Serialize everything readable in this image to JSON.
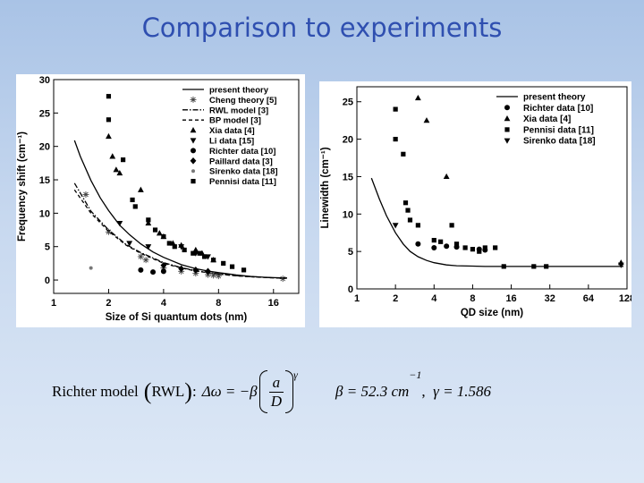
{
  "slide": {
    "title": "Comparison to experiments",
    "formula_left": {
      "prefix": "Richter model",
      "model": "RWL",
      "colon": ":",
      "lhs": "Δω = −β",
      "numerator": "a",
      "denominator": "D",
      "exponent": "γ"
    },
    "formula_right": {
      "beta": "β = 52.3 cm",
      "beta_exp": "−1",
      "gamma": "γ = 1.586"
    }
  },
  "chart_data": [
    {
      "type": "scatter",
      "xlabel": "Size of Si quantum dots (nm)",
      "ylabel": "Frequency shift (cm⁻¹)",
      "xscale": "log",
      "xlim": [
        1,
        22
      ],
      "ylim": [
        -2,
        30
      ],
      "xticks": [
        1,
        2,
        4,
        8,
        16
      ],
      "yticks": [
        0,
        5,
        10,
        15,
        20,
        25,
        30
      ],
      "legend_placement": "top-right",
      "series": [
        {
          "name": "present theory",
          "kind": "line",
          "style": "solid",
          "x": [
            1.3,
            1.4,
            1.6,
            1.8,
            2,
            2.3,
            2.6,
            3,
            3.5,
            4,
            5,
            6,
            7,
            8,
            10,
            12,
            14,
            16,
            19
          ],
          "y": [
            20.9,
            18.5,
            14.9,
            12.3,
            10.4,
            8.2,
            6.8,
            5.4,
            4.2,
            3.4,
            2.3,
            1.7,
            1.35,
            1.1,
            0.76,
            0.55,
            0.42,
            0.35,
            0.3
          ]
        },
        {
          "name": "Cheng theory [5]",
          "kind": "points",
          "marker": "asterisk",
          "x": [
            1.5,
            2,
            3,
            3.2,
            4,
            5,
            6,
            7,
            7.5,
            8,
            18
          ],
          "y": [
            12.8,
            7.2,
            3.5,
            3.0,
            1.8,
            1.3,
            1.0,
            0.8,
            0.7,
            0.6,
            0.2
          ]
        },
        {
          "name": "RWL model [3]",
          "kind": "line",
          "style": "dashdot",
          "x": [
            1.3,
            1.6,
            2,
            2.5,
            3,
            4,
            5,
            6,
            8,
            10,
            12,
            16,
            19
          ],
          "y": [
            14.5,
            10.3,
            7.5,
            5.3,
            4.1,
            2.6,
            1.85,
            1.4,
            0.9,
            0.65,
            0.5,
            0.33,
            0.28
          ]
        },
        {
          "name": "BP model  [3]",
          "kind": "line",
          "style": "dashed",
          "x": [
            1.3,
            1.6,
            2,
            2.5,
            3,
            4,
            5,
            6,
            8,
            10,
            12,
            16,
            19
          ],
          "y": [
            13.5,
            10.0,
            7.3,
            5.2,
            4.0,
            2.5,
            1.8,
            1.35,
            0.88,
            0.63,
            0.48,
            0.32,
            0.27
          ]
        },
        {
          "name": "Xia data [4]",
          "kind": "points",
          "marker": "triangle-up",
          "x": [
            2.0,
            2.1,
            2.2,
            2.3,
            3.0,
            3.3,
            3.8,
            4.0,
            4.5,
            5.0,
            6.0,
            6.5,
            7.5
          ],
          "y": [
            21.5,
            18.5,
            16.5,
            16.0,
            13.5,
            8.5,
            7.0,
            6.5,
            5.5,
            5.2,
            4.5,
            4.0,
            3.0
          ]
        },
        {
          "name": "Li  data [15]",
          "kind": "points",
          "marker": "triangle-down",
          "x": [
            2.3,
            2.6,
            3.3,
            5.0,
            6.0,
            7.0
          ],
          "y": [
            8.5,
            5.5,
            5.0,
            5.0,
            4.0,
            3.5
          ]
        },
        {
          "name": "Richter data [10]",
          "kind": "points",
          "marker": "circle",
          "x": [
            3.0,
            3.5,
            4.0
          ],
          "y": [
            1.5,
            1.2,
            1.3
          ]
        },
        {
          "name": "Paillard data [3]",
          "kind": "points",
          "marker": "diamond",
          "x": [
            4.0,
            5.0,
            6.0,
            7.0
          ],
          "y": [
            2.2,
            1.7,
            1.5,
            1.3
          ]
        },
        {
          "name": "Sirenko data [18]",
          "kind": "points",
          "marker": "circle-small",
          "x": [
            1.6
          ],
          "y": [
            1.8
          ]
        },
        {
          "name": "Pennisi data [11]",
          "kind": "points",
          "marker": "square",
          "x": [
            2,
            2,
            2.4,
            2.7,
            2.8,
            3.3,
            3.6,
            4.0,
            4.3,
            4.6,
            5.2,
            5.8,
            6.3,
            6.7,
            7.5,
            8.5,
            9.5,
            11
          ],
          "y": [
            27.5,
            24.0,
            18.0,
            12.0,
            11.0,
            9.0,
            7.5,
            6.5,
            5.5,
            5.0,
            4.5,
            4.0,
            4.0,
            3.5,
            3.0,
            2.5,
            2.0,
            1.5
          ]
        }
      ]
    },
    {
      "type": "scatter",
      "xlabel": "QD size (nm)",
      "ylabel": "Linewidth (cm⁻¹)",
      "xscale": "log",
      "xlim": [
        1,
        128
      ],
      "ylim": [
        0,
        27
      ],
      "xticks": [
        1,
        2,
        4,
        8,
        16,
        32,
        64,
        128
      ],
      "yticks": [
        0,
        5,
        10,
        15,
        20,
        25
      ],
      "legend_placement": "top-right",
      "series": [
        {
          "name": "present theory",
          "kind": "line",
          "style": "solid",
          "x": [
            1.3,
            1.5,
            1.7,
            2,
            2.3,
            2.6,
            3,
            3.5,
            4,
            5,
            6,
            8,
            10,
            16,
            32,
            64,
            120
          ],
          "y": [
            14.8,
            12.0,
            9.8,
            7.5,
            6.0,
            5.0,
            4.3,
            3.8,
            3.5,
            3.2,
            3.1,
            3.05,
            3.0,
            3.0,
            3.0,
            3.0,
            3.0
          ]
        },
        {
          "name": "Richter data [10]",
          "kind": "points",
          "marker": "circle",
          "x": [
            3.0,
            4.0,
            5.0,
            6.0,
            9.0,
            10.0
          ],
          "y": [
            6.0,
            5.5,
            5.7,
            5.6,
            5.3,
            5.2
          ]
        },
        {
          "name": "Xia data [4]",
          "kind": "points",
          "marker": "triangle-up",
          "x": [
            3.0,
            3.5,
            5.0,
            115
          ],
          "y": [
            25.5,
            22.5,
            15.0,
            3.5
          ]
        },
        {
          "name": "Pennisi data [11]",
          "kind": "points",
          "marker": "square",
          "x": [
            2.0,
            2.0,
            2.3,
            2.4,
            2.5,
            2.6,
            3.0,
            4.0,
            4.5,
            5.5,
            6.0,
            7.0,
            8.0,
            9.0,
            10.0,
            12.0,
            14.0,
            24.0,
            30.0
          ],
          "y": [
            24.0,
            20.0,
            18.0,
            11.5,
            10.5,
            9.2,
            8.5,
            6.5,
            6.3,
            8.5,
            6.0,
            5.5,
            5.3,
            5.0,
            5.5,
            5.5,
            3.0,
            3.0,
            3.0
          ]
        },
        {
          "name": "Sirenko data [18]",
          "kind": "points",
          "marker": "triangle-down",
          "x": [
            2.0,
            115
          ],
          "y": [
            8.5,
            3.2
          ]
        }
      ]
    }
  ]
}
